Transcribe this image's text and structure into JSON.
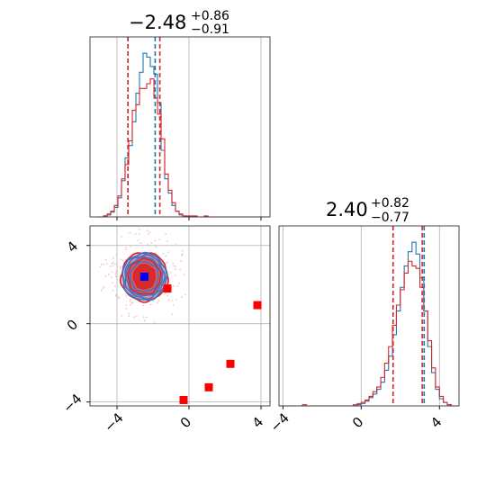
{
  "chart_data": [
    {
      "type": "histogram",
      "panel": "marginal-x",
      "title_main": "−2.48",
      "title_sup": "+0.86",
      "title_sub": "−0.91",
      "xlim": [
        -5.5,
        4.5
      ],
      "grid": true,
      "xticks": [
        -4,
        0,
        4
      ],
      "bin_centers": [
        -5.05,
        -4.85,
        -4.65,
        -4.45,
        -4.25,
        -4.05,
        -3.85,
        -3.65,
        -3.45,
        -3.25,
        -3.05,
        -2.85,
        -2.65,
        -2.45,
        -2.25,
        -2.05,
        -1.85,
        -1.65,
        -1.45,
        -1.25,
        -1.05,
        -0.85,
        -0.65,
        -0.45,
        -0.25,
        -0.05,
        0.15,
        0.35,
        0.55,
        0.75,
        0.95,
        1.15,
        1.35,
        1.55,
        1.75,
        1.95,
        2.15,
        2.35,
        2.55,
        2.75,
        2.95,
        3.15,
        3.35,
        3.55,
        3.75,
        3.95,
        4.15,
        4.35
      ],
      "series": [
        {
          "color": "#1f77b4",
          "counts": [
            0,
            0,
            1,
            2,
            5,
            10,
            20,
            38,
            62,
            75,
            100,
            130,
            152,
            172,
            168,
            158,
            150,
            120,
            70,
            40,
            25,
            12,
            6,
            2,
            1,
            0,
            0,
            0,
            0,
            0,
            0,
            0,
            0,
            0,
            0,
            0,
            0,
            0,
            0,
            0,
            0,
            0,
            0,
            0,
            0,
            0,
            0,
            0
          ]
        },
        {
          "color": "#d62728",
          "counts": [
            0,
            0,
            1,
            3,
            6,
            12,
            22,
            40,
            55,
            80,
            112,
            118,
            135,
            135,
            140,
            145,
            125,
            108,
            82,
            45,
            28,
            15,
            6,
            3,
            1,
            1,
            1,
            1,
            0,
            0,
            1,
            0,
            0,
            0,
            0,
            0,
            0,
            0,
            0,
            0,
            0,
            0,
            0,
            0,
            0,
            0,
            0,
            0
          ]
        }
      ],
      "vlines": [
        {
          "x": -3.39,
          "color": "#1f77b4"
        },
        {
          "x": -3.39,
          "color": "#d62728"
        },
        {
          "x": -1.88,
          "color": "#1f77b4"
        },
        {
          "x": -1.62,
          "color": "#d62728"
        }
      ]
    },
    {
      "type": "contour",
      "panel": "joint",
      "xlim": [
        -5.5,
        4.5
      ],
      "ylim": [
        -4.2,
        5.0
      ],
      "grid": true,
      "xticks": [
        -4,
        0,
        4
      ],
      "yticks": [
        -4,
        0,
        4
      ],
      "center": {
        "x": -2.48,
        "y": 2.4
      },
      "levels": [
        {
          "rx": 1.3,
          "ry": 1.25,
          "fill": "#f4b6b6",
          "edge": "#d62728"
        },
        {
          "rx": 1.1,
          "ry": 1.1,
          "fill": "#e9898b",
          "edge": "#4472c4"
        },
        {
          "rx": 0.9,
          "ry": 0.9,
          "fill": "#e15558",
          "edge": "#d62728"
        },
        {
          "rx": 0.6,
          "ry": 0.62,
          "fill": "#d62728",
          "edge": "#d62728"
        }
      ],
      "markers_red": [
        {
          "x": 3.8,
          "y": 0.95
        },
        {
          "x": 2.3,
          "y": -2.05
        },
        {
          "x": 1.1,
          "y": -3.25
        },
        {
          "x": -0.3,
          "y": -3.9
        },
        {
          "x": -1.2,
          "y": 1.8
        }
      ],
      "markers_blue": [
        {
          "x": -2.48,
          "y": 2.4
        }
      ]
    },
    {
      "type": "histogram",
      "panel": "marginal-y",
      "title_main": "2.40",
      "title_sup": "+0.82",
      "title_sub": "−0.77",
      "xlim": [
        -4.2,
        5.0
      ],
      "grid": true,
      "xticks": [
        -4,
        0,
        4
      ],
      "bin_centers": [
        -4.1,
        -3.9,
        -3.7,
        -3.5,
        -3.3,
        -3.1,
        -2.9,
        -2.7,
        -2.5,
        -2.3,
        -2.1,
        -1.9,
        -1.7,
        -1.5,
        -1.3,
        -1.1,
        -0.9,
        -0.7,
        -0.5,
        -0.3,
        -0.1,
        0.1,
        0.3,
        0.5,
        0.7,
        0.9,
        1.1,
        1.3,
        1.5,
        1.7,
        1.9,
        2.1,
        2.3,
        2.5,
        2.7,
        2.9,
        3.1,
        3.3,
        3.5,
        3.7,
        3.9,
        4.1,
        4.3,
        4.5,
        4.7,
        4.9
      ],
      "series": [
        {
          "color": "#1f77b4",
          "counts": [
            0,
            0,
            0,
            0,
            0,
            0,
            0,
            0,
            0,
            0,
            0,
            0,
            0,
            0,
            0,
            0,
            0,
            0,
            0,
            0,
            1,
            2,
            4,
            7,
            10,
            14,
            20,
            30,
            42,
            60,
            80,
            100,
            118,
            130,
            138,
            128,
            108,
            80,
            50,
            28,
            14,
            6,
            3,
            1,
            0,
            0
          ]
        },
        {
          "color": "#d62728",
          "counts": [
            0,
            0,
            0,
            0,
            0,
            0,
            1,
            0,
            0,
            0,
            0,
            0,
            0,
            0,
            0,
            0,
            0,
            0,
            0,
            1,
            2,
            3,
            5,
            8,
            12,
            16,
            24,
            36,
            50,
            68,
            85,
            98,
            112,
            122,
            118,
            116,
            100,
            80,
            55,
            32,
            16,
            8,
            3,
            1,
            0,
            0
          ]
        }
      ],
      "vlines": [
        {
          "x": 1.63,
          "color": "#1f77b4"
        },
        {
          "x": 1.63,
          "color": "#d62728"
        },
        {
          "x": 3.22,
          "color": "#1f77b4"
        },
        {
          "x": 3.12,
          "color": "#d62728"
        }
      ]
    }
  ]
}
